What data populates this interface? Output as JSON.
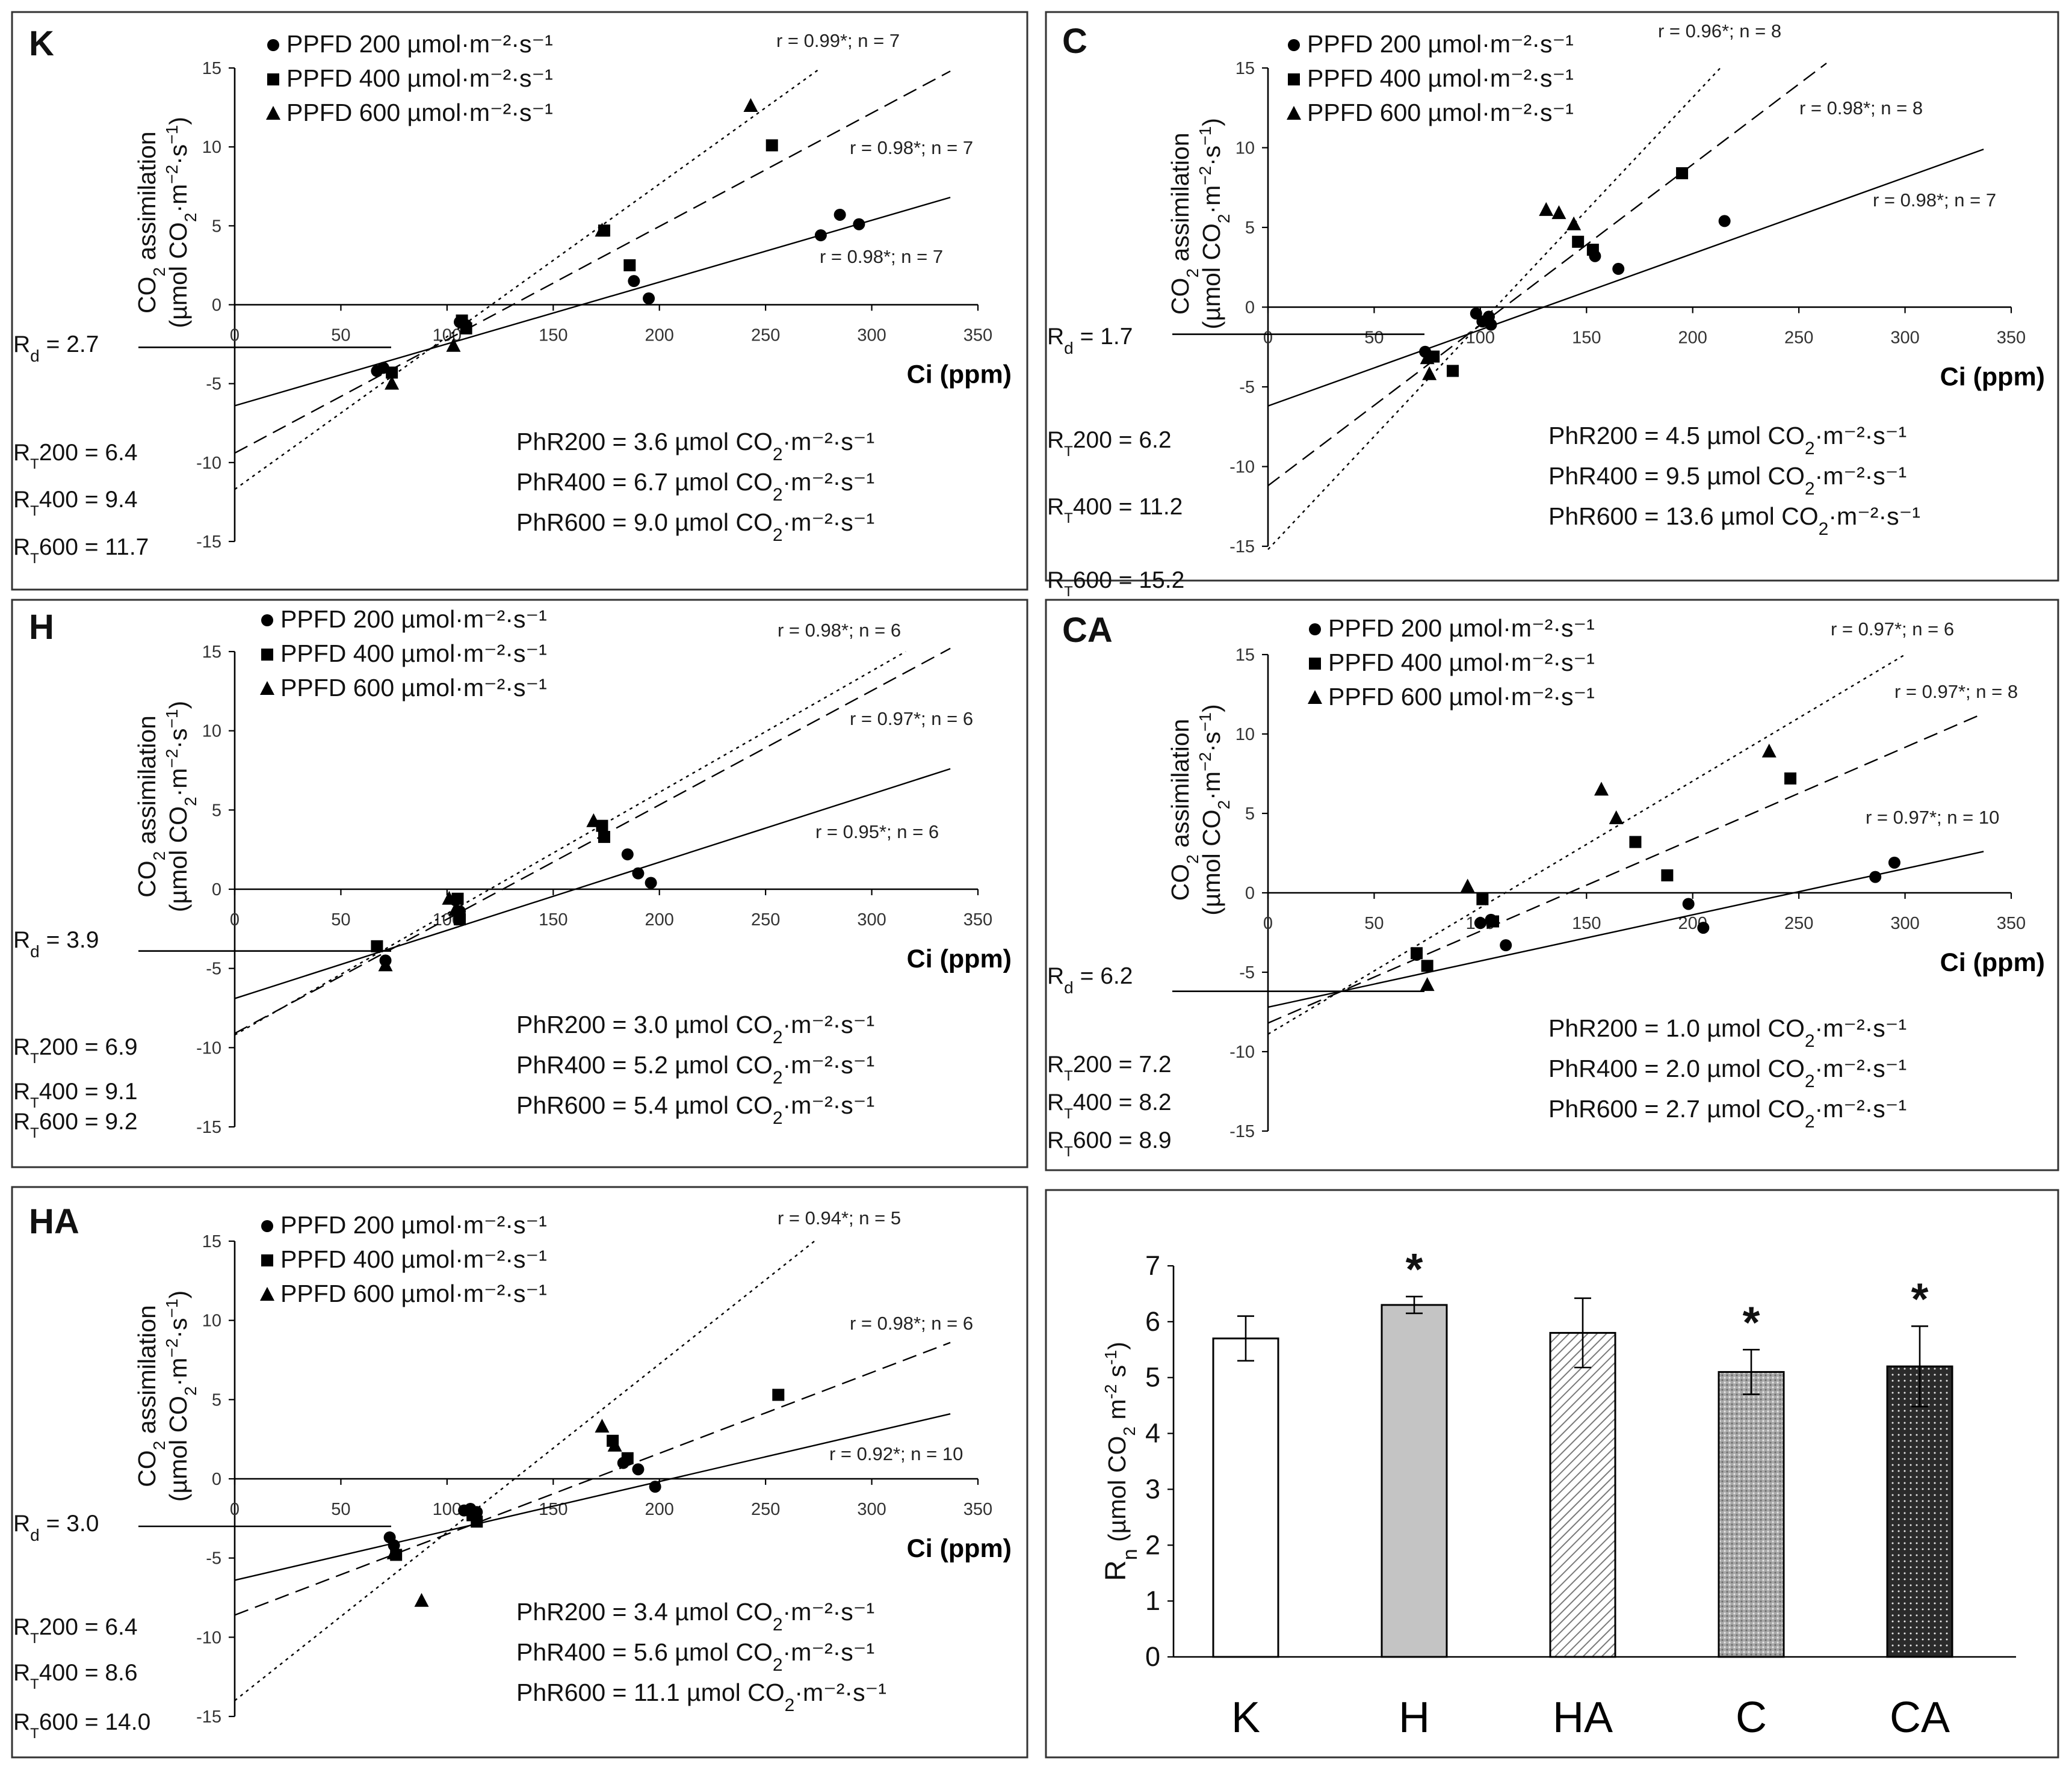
{
  "chart_data": [
    {
      "type": "scatter",
      "panel": "K",
      "xlabel": "Ci (ppm)",
      "ylabel_line1": "CO2 assimilation",
      "ylabel_line2": "(µmol CO2·m−2·s−1)",
      "xlim": [
        0,
        350
      ],
      "ylim": [
        -15,
        15
      ],
      "xticks": [
        0,
        50,
        100,
        150,
        200,
        250,
        300,
        350
      ],
      "yticks": [
        -15,
        -10,
        -5,
        0,
        5,
        10,
        15
      ],
      "legend": [
        "PPFD 200 µmol·m⁻²·s⁻¹",
        "PPFD 400 µmol·m⁻²·s⁻¹",
        "PPFD 600 µmol·m⁻²·s⁻¹"
      ],
      "series": [
        {
          "name": "PPFD 200",
          "marker": "circle",
          "dash": "solid",
          "fit": [
            [
              0,
              -6.4
            ],
            [
              337,
              6.8
            ]
          ],
          "r_text": "r = 0.98*; n = 7",
          "points": [
            [
              67,
              -4.2
            ],
            [
              70,
              -4.0
            ],
            [
              106,
              -1.1
            ],
            [
              109,
              -1.3
            ],
            [
              188,
              1.5
            ],
            [
              195,
              0.4
            ],
            [
              276,
              4.4
            ],
            [
              285,
              5.7
            ],
            [
              294,
              5.1
            ]
          ]
        },
        {
          "name": "PPFD 400",
          "marker": "square",
          "dash": "dashed",
          "fit": [
            [
              0,
              -9.4
            ],
            [
              337,
              14.8
            ]
          ],
          "r_text": "r = 0.98*; n = 7",
          "points": [
            [
              74,
              -4.3
            ],
            [
              107,
              -1.0
            ],
            [
              109,
              -1.5
            ],
            [
              174,
              4.7
            ],
            [
              186,
              2.5
            ],
            [
              253,
              10.1
            ]
          ]
        },
        {
          "name": "PPFD 600",
          "marker": "triangle",
          "dash": "dotted",
          "fit": [
            [
              0,
              -11.7
            ],
            [
              276,
              15.0
            ]
          ],
          "r_text": "r = 0.99*; n = 7",
          "points": [
            [
              74,
              -5.0
            ],
            [
              103,
              -2.6
            ],
            [
              173,
              4.7
            ],
            [
              243,
              12.6
            ]
          ]
        }
      ],
      "rd_value": -2.7,
      "rd_text": "2.7",
      "rt_texts": [
        "200 = 6.4",
        "400 = 9.4",
        "600 = 11.7"
      ],
      "phr_labels": [
        "PhR200 = 3.6 µmol CO",
        "PhR400 = 6.7 µmol CO",
        "PhR600 = 9.0 µmol CO"
      ]
    },
    {
      "type": "scatter",
      "panel": "C",
      "xlabel": "Ci (ppm)",
      "ylabel_line1": "CO2 assimilation",
      "ylabel_line2": "(µmol CO2·m−2·s−1)",
      "xlim": [
        0,
        350
      ],
      "ylim": [
        -15,
        15
      ],
      "xticks": [
        0,
        50,
        100,
        150,
        200,
        250,
        300,
        350
      ],
      "yticks": [
        -15,
        -10,
        -5,
        0,
        5,
        10,
        15
      ],
      "legend": [
        "PPFD 200 µmol·m⁻²·s⁻¹",
        "PPFD 400 µmol·m⁻²·s⁻¹",
        "PPFD 600 µmol·m⁻²·s⁻¹"
      ],
      "series": [
        {
          "name": "PPFD 200",
          "marker": "circle",
          "dash": "solid",
          "fit": [
            [
              0,
              -6.2
            ],
            [
              337,
              9.9
            ]
          ],
          "r_text": "r = 0.98*; n = 7",
          "points": [
            [
              74,
              -2.8
            ],
            [
              98,
              -0.4
            ],
            [
              101,
              -0.9
            ],
            [
              104,
              -0.6
            ],
            [
              105,
              -1.1
            ],
            [
              154,
              3.2
            ],
            [
              165,
              2.4
            ],
            [
              215,
              5.4
            ]
          ]
        },
        {
          "name": "PPFD 400",
          "marker": "square",
          "dash": "dashed",
          "fit": [
            [
              0,
              -11.2
            ],
            [
              263,
              15.3
            ]
          ],
          "r_text": "r = 0.98*; n = 8",
          "points": [
            [
              78,
              -3.1
            ],
            [
              87,
              -4.0
            ],
            [
              146,
              4.1
            ],
            [
              153,
              3.6
            ],
            [
              195,
              8.4
            ]
          ]
        },
        {
          "name": "PPFD 600",
          "marker": "triangle",
          "dash": "dotted",
          "fit": [
            [
              0,
              -15.2
            ],
            [
              213,
              15.0
            ]
          ],
          "r_text": "r = 0.96*; n = 8",
          "points": [
            [
              75,
              -3.2
            ],
            [
              76,
              -4.2
            ],
            [
              131,
              6.1
            ],
            [
              137,
              5.9
            ],
            [
              144,
              5.2
            ]
          ]
        }
      ],
      "rd_value": -1.7,
      "rd_text": "1.7",
      "rt_texts": [
        "200 = 6.2",
        "400 = 11.2",
        "600 = 15.2"
      ],
      "phr_labels": [
        "PhR200 = 4.5 µmol CO",
        "PhR400 = 9.5 µmol CO",
        "PhR600 = 13.6 µmol CO"
      ]
    },
    {
      "type": "scatter",
      "panel": "H",
      "xlabel": "Ci (ppm)",
      "ylabel_line1": "CO2 assimilation",
      "ylabel_line2": "(µmol CO2·m−2·s−1)",
      "xlim": [
        0,
        350
      ],
      "ylim": [
        -15,
        15
      ],
      "xticks": [
        0,
        50,
        100,
        150,
        200,
        250,
        300,
        350
      ],
      "yticks": [
        -15,
        -10,
        -5,
        0,
        5,
        10,
        15
      ],
      "legend": [
        "PPFD 200 µmol·m⁻²·s⁻¹",
        "PPFD 400 µmol·m⁻²·s⁻¹",
        "PPFD 600 µmol·m⁻²·s⁻¹"
      ],
      "series": [
        {
          "name": "PPFD 200",
          "marker": "circle",
          "dash": "solid",
          "fit": [
            [
              0,
              -6.9
            ],
            [
              337,
              7.6
            ]
          ],
          "r_text": "r = 0.95*; n = 6",
          "points": [
            [
              71,
              -4.5
            ],
            [
              104,
              -0.7
            ],
            [
              106,
              -1.4
            ],
            [
              185,
              2.2
            ],
            [
              190,
              1.0
            ],
            [
              196,
              0.4
            ]
          ]
        },
        {
          "name": "PPFD 400",
          "marker": "square",
          "dash": "dashed",
          "fit": [
            [
              0,
              -9.1
            ],
            [
              337,
              15.2
            ]
          ],
          "r_text": "r = 0.97*; n = 6",
          "points": [
            [
              67,
              -3.6
            ],
            [
              105,
              -0.6
            ],
            [
              106,
              -1.9
            ],
            [
              173,
              4.0
            ],
            [
              174,
              3.3
            ]
          ]
        },
        {
          "name": "PPFD 600",
          "marker": "triangle",
          "dash": "dotted",
          "fit": [
            [
              0,
              -9.2
            ],
            [
              316,
              15.0
            ]
          ],
          "r_text": "r = 0.98*; n = 6",
          "points": [
            [
              71,
              -4.8
            ],
            [
              101,
              -0.6
            ],
            [
              104,
              -1.3
            ],
            [
              169,
              4.3
            ]
          ]
        }
      ],
      "rd_value": -3.9,
      "rd_text": "3.9",
      "rt_texts": [
        "200 = 6.9",
        "400 = 9.1",
        "600 = 9.2"
      ],
      "phr_labels": [
        "PhR200 = 3.0 µmol CO",
        "PhR400 = 5.2 µmol CO",
        "PhR600 = 5.4 µmol CO"
      ]
    },
    {
      "type": "scatter",
      "panel": "CA",
      "xlabel": "Ci (ppm)",
      "ylabel_line1": "CO2 assimilation",
      "ylabel_line2": "(µmol CO2·m−2·s−1)",
      "xlim": [
        0,
        350
      ],
      "ylim": [
        -15,
        15
      ],
      "xticks": [
        0,
        50,
        100,
        150,
        200,
        250,
        300,
        350
      ],
      "yticks": [
        -15,
        -10,
        -5,
        0,
        5,
        10,
        15
      ],
      "legend": [
        "PPFD 200 µmol·m⁻²·s⁻¹",
        "PPFD 400 µmol·m⁻²·s⁻¹",
        "PPFD 600 µmol·m⁻²·s⁻¹"
      ],
      "series": [
        {
          "name": "PPFD 200",
          "marker": "circle",
          "dash": "solid",
          "fit": [
            [
              0,
              -7.2
            ],
            [
              337,
              2.6
            ]
          ],
          "r_text": "r = 0.97*; n = 10",
          "points": [
            [
              70,
              -3.9
            ],
            [
              100,
              -1.9
            ],
            [
              105,
              -1.7
            ],
            [
              112,
              -3.3
            ],
            [
              198,
              -0.7
            ],
            [
              205,
              -2.2
            ],
            [
              286,
              1.0
            ],
            [
              295,
              1.9
            ]
          ]
        },
        {
          "name": "PPFD 400",
          "marker": "square",
          "dash": "dashed",
          "fit": [
            [
              0,
              -8.2
            ],
            [
              337,
              11.3
            ]
          ],
          "r_text": "r = 0.97*; n = 8",
          "points": [
            [
              70,
              -3.8
            ],
            [
              75,
              -4.6
            ],
            [
              101,
              -0.4
            ],
            [
              106,
              -1.8
            ],
            [
              173,
              3.2
            ],
            [
              188,
              1.1
            ],
            [
              246,
              7.2
            ]
          ]
        },
        {
          "name": "PPFD 600",
          "marker": "triangle",
          "dash": "dotted",
          "fit": [
            [
              0,
              -8.9
            ],
            [
              300,
              15.0
            ]
          ],
          "r_text": "r = 0.97*; n = 6",
          "points": [
            [
              75,
              -5.8
            ],
            [
              94,
              0.4
            ],
            [
              157,
              6.5
            ],
            [
              164,
              4.7
            ],
            [
              236,
              8.9
            ]
          ]
        }
      ],
      "rd_value": -6.2,
      "rd_text": "6.2",
      "rt_texts": [
        "200 = 7.2",
        "400 = 8.2",
        "600 = 8.9"
      ],
      "phr_labels": [
        "PhR200 = 1.0 µmol CO",
        "PhR400 = 2.0 µmol CO",
        "PhR600 = 2.7 µmol CO"
      ]
    },
    {
      "type": "scatter",
      "panel": "HA",
      "xlabel": "Ci (ppm)",
      "ylabel_line1": "CO2 assimilation",
      "ylabel_line2": "(µmol CO2·m−2·s−1)",
      "xlim": [
        0,
        350
      ],
      "ylim": [
        -15,
        15
      ],
      "xticks": [
        0,
        50,
        100,
        150,
        200,
        250,
        300,
        350
      ],
      "yticks": [
        -15,
        -10,
        -5,
        0,
        5,
        10,
        15
      ],
      "legend": [
        "PPFD 200 µmol·m⁻²·s⁻¹",
        "PPFD 400 µmol·m⁻²·s⁻¹",
        "PPFD 600 µmol·m⁻²·s⁻¹"
      ],
      "series": [
        {
          "name": "PPFD 200",
          "marker": "circle",
          "dash": "solid",
          "fit": [
            [
              0,
              -6.4
            ],
            [
              337,
              4.1
            ]
          ],
          "r_text": "r = 0.92*; n = 10",
          "points": [
            [
              73,
              -3.7
            ],
            [
              75,
              -4.2
            ],
            [
              108,
              -2.0
            ],
            [
              111,
              -1.9
            ],
            [
              114,
              -2.1
            ],
            [
              183,
              1.0
            ],
            [
              190,
              0.6
            ],
            [
              198,
              -0.5
            ]
          ]
        },
        {
          "name": "PPFD 400",
          "marker": "square",
          "dash": "dashed",
          "fit": [
            [
              0,
              -8.6
            ],
            [
              337,
              8.6
            ]
          ],
          "r_text": "r = 0.98*; n = 6",
          "points": [
            [
              76,
              -4.8
            ],
            [
              112,
              -2.3
            ],
            [
              114,
              -2.7
            ],
            [
              178,
              2.4
            ],
            [
              185,
              1.3
            ],
            [
              256,
              5.3
            ]
          ]
        },
        {
          "name": "PPFD 600",
          "marker": "triangle",
          "dash": "dotted",
          "fit": [
            [
              0,
              -14.0
            ],
            [
              273,
              15.0
            ]
          ],
          "r_text": "r = 0.94*; n = 5",
          "points": [
            [
              75,
              -4.7
            ],
            [
              88,
              -7.7
            ],
            [
              173,
              3.3
            ],
            [
              179,
              2.1
            ]
          ]
        }
      ],
      "rd_value": -3.0,
      "rd_text": "3.0",
      "rt_texts": [
        "200 = 6.4",
        "400 = 8.6",
        "600 = 14.0"
      ],
      "phr_labels": [
        "PhR200 = 3.4 µmol CO",
        "PhR400 = 5.6 µmol CO",
        "PhR600 = 11.1 µmol CO"
      ]
    },
    {
      "type": "bar",
      "panel": "Rn",
      "ylabel": "Rn (µmol CO2 m−2 s−1)",
      "ylabel_main": "R",
      "ylabel_sub": "n",
      "ylabel_rest": " (µmol CO",
      "ylim": [
        0,
        7
      ],
      "yticks": [
        0,
        1,
        2,
        3,
        4,
        5,
        6,
        7
      ],
      "categories": [
        "K",
        "H",
        "HA",
        "C",
        "CA"
      ],
      "values": [
        5.7,
        6.3,
        5.8,
        5.1,
        5.2
      ],
      "errors": [
        0.4,
        0.15,
        0.62,
        0.4,
        0.72
      ],
      "significant": [
        false,
        true,
        false,
        true,
        true
      ],
      "star": "*",
      "fills": [
        "white",
        "#c4c4c4",
        "hatch",
        "dots-light",
        "dots-dark"
      ]
    }
  ],
  "common": {
    "co2_sub": "2",
    "unit_tail": "·m⁻²·s⁻¹",
    "rd_prefix": "R",
    "rd_sub": "d",
    "rt_prefix": "R",
    "rt_sub": "T",
    "eq": " = "
  }
}
